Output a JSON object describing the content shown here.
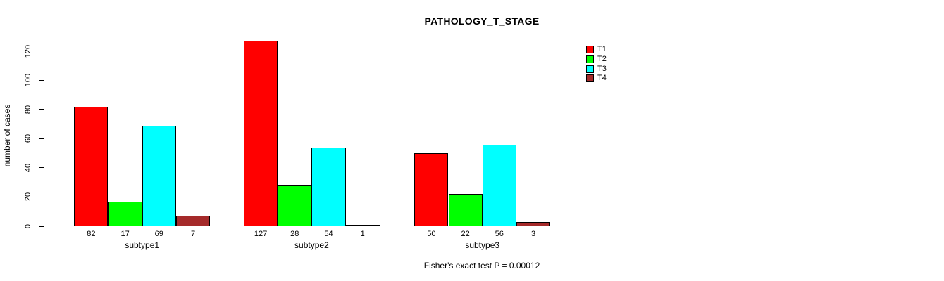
{
  "chart_data": {
    "type": "bar",
    "title": "PATHOLOGY_T_STAGE",
    "ylabel": "number of cases",
    "xlabel": "",
    "categories": [
      "subtype1",
      "subtype2",
      "subtype3"
    ],
    "series": [
      {
        "name": "T1",
        "color": "#FF0000",
        "values": [
          82,
          127,
          50
        ]
      },
      {
        "name": "T2",
        "color": "#00FF00",
        "values": [
          17,
          28,
          22
        ]
      },
      {
        "name": "T3",
        "color": "#00FFFF",
        "values": [
          69,
          54,
          56
        ]
      },
      {
        "name": "T4",
        "color": "#A52A2A",
        "values": [
          7,
          1,
          3
        ]
      }
    ],
    "bar_value_labels": [
      [
        82,
        17,
        69,
        7
      ],
      [
        127,
        28,
        54,
        1
      ],
      [
        50,
        22,
        56,
        3
      ]
    ],
    "y_ticks": [
      0,
      20,
      40,
      60,
      80,
      100,
      120
    ],
    "ylim": [
      0,
      127
    ],
    "grid": false,
    "legend_position": "right",
    "footnote": "Fisher's exact test P = 0.00012",
    "axis_color": "#000000",
    "bar_border_color": "#000000"
  }
}
